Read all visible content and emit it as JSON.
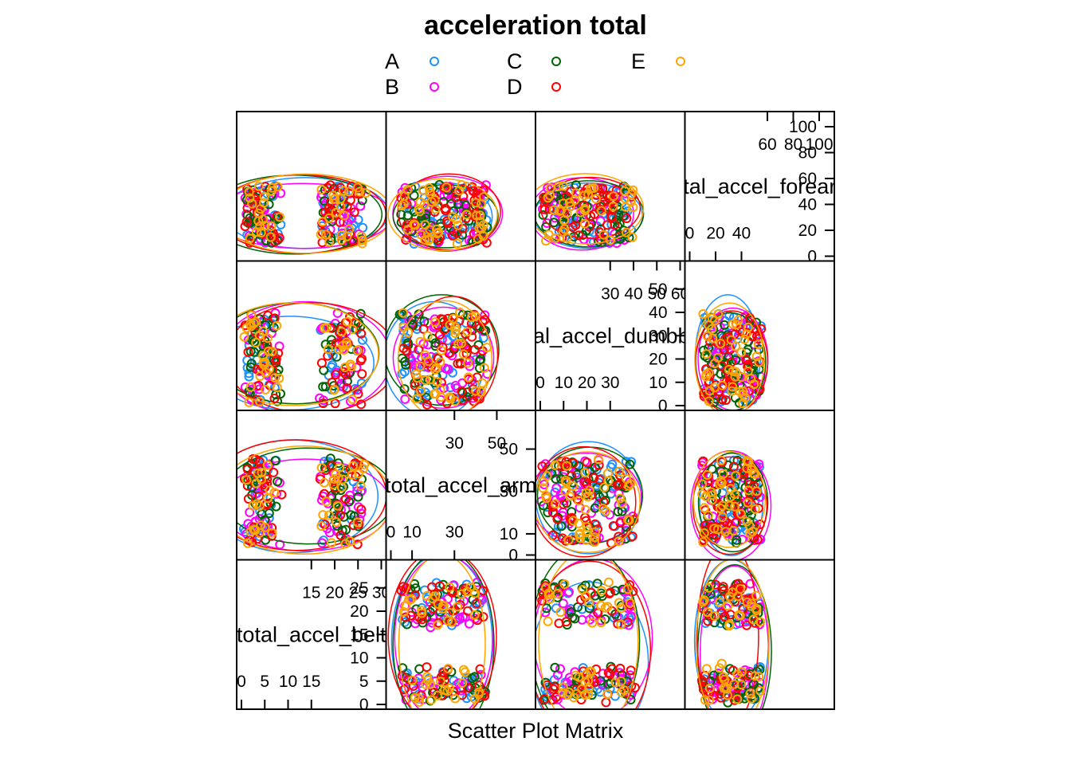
{
  "chart_data": {
    "type": "scatter",
    "title": "acceleration total",
    "xlabel": "Scatter Plot Matrix",
    "legend_position": "top",
    "groups": [
      {
        "name": "A",
        "color": "#1e90ff"
      },
      {
        "name": "B",
        "color": "#ff00ff"
      },
      {
        "name": "C",
        "color": "#006400"
      },
      {
        "name": "D",
        "color": "#ff0000"
      },
      {
        "name": "E",
        "color": "#ffa500"
      }
    ],
    "variables": [
      {
        "name": "total_accel_belt",
        "range": [
          0,
          30
        ],
        "low_ticks": [
          "0",
          "5",
          "10",
          "15"
        ],
        "high_ticks": [
          "15",
          "20",
          "25",
          "30"
        ],
        "clusters": [
          [
            1,
            8
          ],
          [
            17,
            26
          ]
        ]
      },
      {
        "name": "total_accel_arm",
        "range": [
          0,
          66
        ],
        "low_ticks": [
          "0",
          "10",
          "30"
        ],
        "high_ticks": [
          "30",
          "50"
        ],
        "clusters": [
          [
            5,
            45
          ]
        ]
      },
      {
        "name": "total_accel_dumbbell",
        "range": [
          0,
          60
        ],
        "low_ticks": [
          "0",
          "10",
          "20",
          "30"
        ],
        "high_ticks": [
          "30",
          "40",
          "50",
          "60"
        ],
        "clusters": [
          [
            1,
            40
          ]
        ]
      },
      {
        "name": "total_accel_forearm",
        "range": [
          0,
          108
        ],
        "low_ticks": [
          "0",
          "20",
          "40"
        ],
        "high_ticks": [
          "60",
          "80",
          "100"
        ],
        "clusters": [
          [
            10,
            55
          ]
        ]
      }
    ]
  }
}
